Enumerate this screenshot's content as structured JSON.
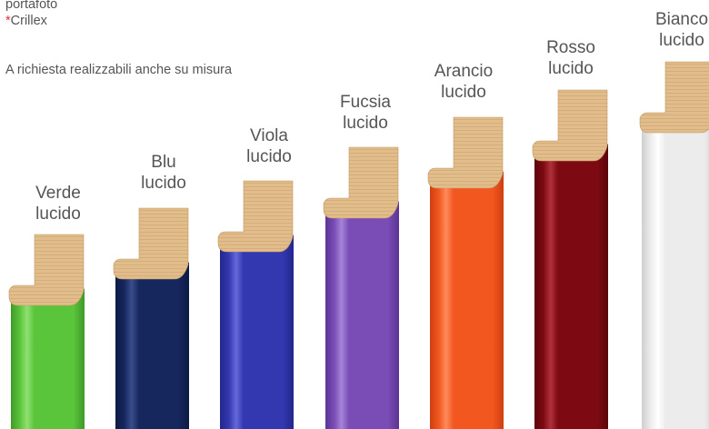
{
  "intro": {
    "line1": "portafoto",
    "asterisk": "*",
    "brand": "Crillex"
  },
  "note": "A richiesta realizzabili anche su misura",
  "frames": [
    {
      "id": "verde",
      "line1": "Verde",
      "line2": "lucido",
      "color": "#5ac43a",
      "dark": "#3e9a28",
      "light": "#8fe070"
    },
    {
      "id": "blu",
      "line1": "Blu",
      "line2": "lucido",
      "color": "#16275e",
      "dark": "#0c1a44",
      "light": "#3a4e8c"
    },
    {
      "id": "viola",
      "line1": "Viola",
      "line2": "lucido",
      "color": "#3438b0",
      "dark": "#22268c",
      "light": "#6468d8"
    },
    {
      "id": "fucsia",
      "line1": "Fucsia",
      "line2": "lucido",
      "color": "#7a4cb6",
      "dark": "#5a3494",
      "light": "#a684d8"
    },
    {
      "id": "arancio",
      "line1": "Arancio",
      "line2": "lucido",
      "color": "#f2571f",
      "dark": "#cf3e0f",
      "light": "#ff8a5c"
    },
    {
      "id": "rosso",
      "line1": "Rosso",
      "line2": "lucido",
      "color": "#7d0a12",
      "dark": "#5a050b",
      "light": "#b0303a"
    },
    {
      "id": "bianco",
      "line1": "Bianco",
      "line2": "lucido",
      "color": "#ececec",
      "dark": "#cfcfcf",
      "light": "#ffffff"
    }
  ]
}
